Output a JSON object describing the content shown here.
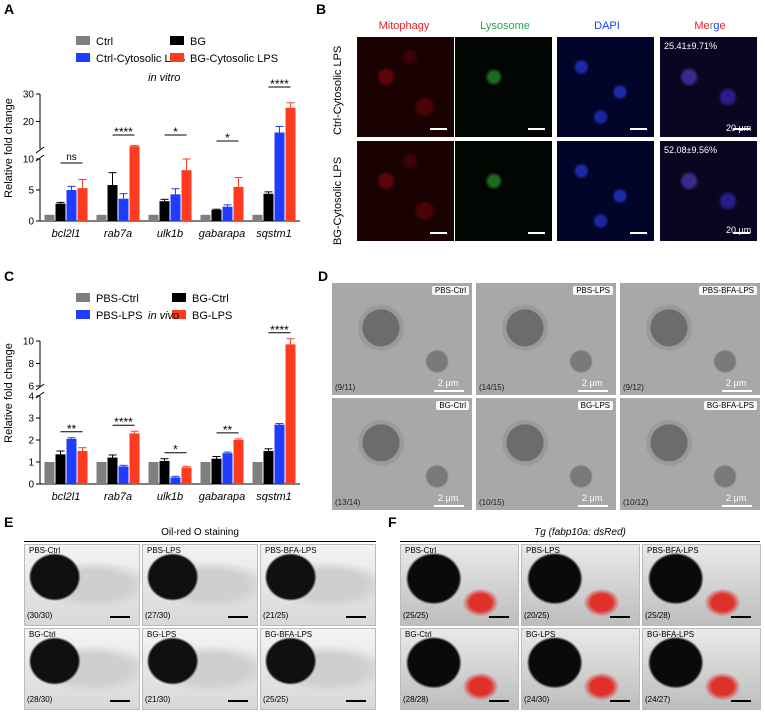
{
  "panels": {
    "A": "A",
    "B": "B",
    "C": "C",
    "D": "D",
    "E": "E",
    "F": "F"
  },
  "colors": {
    "ctrl": "#7f7f7f",
    "bg": "#000000",
    "lps_blue": "#1f3cff",
    "lps_red": "#ff3b1f"
  },
  "chart_data": [
    {
      "type": "bar",
      "panel": "A",
      "annotation": "in vitro",
      "ylabel": "Relative fold change",
      "categories": [
        "bcl2l1",
        "rab7a",
        "ulk1b",
        "gabarapa",
        "sqstm1"
      ],
      "series": [
        {
          "name": "Ctrl",
          "values": [
            1,
            1,
            1,
            1,
            1
          ],
          "errors": [
            0,
            0,
            0,
            0,
            0
          ]
        },
        {
          "name": "BG",
          "values": [
            2.8,
            5.8,
            3.2,
            1.8,
            4.4
          ],
          "errors": [
            0.2,
            2.0,
            0.3,
            0.1,
            0.3
          ]
        },
        {
          "name": "Ctrl-Cytosolic LPS",
          "values": [
            5.0,
            3.6,
            4.3,
            2.3,
            16.0
          ],
          "errors": [
            0.6,
            0.8,
            0.9,
            0.3,
            2.2
          ]
        },
        {
          "name": "BG-Cytosolic LPS",
          "values": [
            5.3,
            11.0,
            8.2,
            5.5,
            25.0
          ],
          "errors": [
            1.4,
            0.3,
            1.8,
            1.5,
            1.8
          ]
        }
      ],
      "y_axis_break": {
        "lower": [
          0,
          10
        ],
        "upper": [
          10,
          30
        ]
      },
      "yticks": [
        0,
        5,
        10,
        20,
        30
      ],
      "significance": [
        {
          "category": "bcl2l1",
          "label": "ns"
        },
        {
          "category": "rab7a",
          "label": "****"
        },
        {
          "category": "ulk1b",
          "label": "*"
        },
        {
          "category": "gabarapa",
          "label": "*"
        },
        {
          "category": "sqstm1",
          "label": "****"
        }
      ],
      "legend_layout": "top, two columns"
    },
    {
      "type": "bar",
      "panel": "C",
      "annotation": "in vivo",
      "ylabel": "Relative fold change",
      "categories": [
        "bcl2l1",
        "rab7a",
        "ulk1b",
        "gabarapa",
        "sqstm1"
      ],
      "series": [
        {
          "name": "PBS-Ctrl",
          "values": [
            1,
            1,
            1,
            1,
            1
          ],
          "errors": [
            0,
            0,
            0,
            0,
            0
          ]
        },
        {
          "name": "BG-Ctrl",
          "values": [
            1.35,
            1.2,
            1.05,
            1.15,
            1.5
          ],
          "errors": [
            0.15,
            0.12,
            0.1,
            0.1,
            0.1
          ]
        },
        {
          "name": "PBS-LPS",
          "values": [
            2.05,
            0.8,
            0.3,
            1.4,
            2.7
          ],
          "errors": [
            0.05,
            0.05,
            0.05,
            0.05,
            0.05
          ]
        },
        {
          "name": "BG-LPS",
          "values": [
            1.5,
            2.3,
            0.75,
            2.0,
            9.7
          ],
          "errors": [
            0.15,
            0.1,
            0.05,
            0.05,
            0.5
          ]
        }
      ],
      "y_axis_break": {
        "lower": [
          0,
          4
        ],
        "upper": [
          6,
          10
        ]
      },
      "yticks": [
        0,
        1,
        2,
        3,
        4,
        6,
        8,
        10
      ],
      "significance": [
        {
          "category": "bcl2l1",
          "label": "**"
        },
        {
          "category": "rab7a",
          "label": "****"
        },
        {
          "category": "ulk1b",
          "label": "*"
        },
        {
          "category": "gabarapa",
          "label": "**"
        },
        {
          "category": "sqstm1",
          "label": "****"
        }
      ],
      "legend_layout": "top, two columns"
    }
  ],
  "panelB": {
    "columns": [
      "Mitophagy",
      "Lysosome",
      "DAPI",
      "Merge"
    ],
    "column_colors": [
      "#e8202a",
      "#22a84a",
      "#1f3cff",
      "#e8202a"
    ],
    "merge_colors": [
      "#e8202a",
      "#22a84a",
      "#1f3cff",
      "#e8202a"
    ],
    "merge_parts": [
      "Me",
      "r",
      "g",
      "e"
    ],
    "rows": [
      "Ctrl-Cytosolic LPS",
      "BG-Cytosolic LPS"
    ],
    "percentages": [
      "25.41±9.71%",
      "52.08±9.56%"
    ],
    "scale": "20 μm"
  },
  "panelD": {
    "cells": [
      {
        "label": "PBS-Ctrl",
        "count": "(9/11)",
        "scale": "2 μm"
      },
      {
        "label": "PBS-LPS",
        "count": "(14/15)",
        "scale": "2 μm"
      },
      {
        "label": "PBS-BFA-LPS",
        "count": "(9/12)",
        "scale": "2 μm"
      },
      {
        "label": "BG-Ctrl",
        "count": "(13/14)",
        "scale": "2 μm"
      },
      {
        "label": "BG-LPS",
        "count": "(10/15)",
        "scale": "2 μm"
      },
      {
        "label": "BG-BFA-LPS",
        "count": "(10/12)",
        "scale": "2 μm"
      }
    ]
  },
  "panelE": {
    "title": "Oil-red O staining",
    "cells": [
      {
        "label": "PBS-Ctrl",
        "count": "(30/30)"
      },
      {
        "label": "PBS-LPS",
        "count": "(27/30)"
      },
      {
        "label": "PBS-BFA-LPS",
        "count": "(21/25)"
      },
      {
        "label": "BG-Ctrl",
        "count": "(28/30)"
      },
      {
        "label": "BG-LPS",
        "count": "(21/30)"
      },
      {
        "label": "BG-BFA-LPS",
        "count": "(25/25)"
      }
    ]
  },
  "panelF": {
    "title": "Tg (fabp10a: dsRed)",
    "cells": [
      {
        "label": "PBS-Ctrl",
        "count": "(25/25)"
      },
      {
        "label": "PBS-LPS",
        "count": "(20/25)"
      },
      {
        "label": "PBS-BFA-LPS",
        "count": "(25/28)"
      },
      {
        "label": "BG-Ctrl",
        "count": "(28/28)"
      },
      {
        "label": "BG-LPS",
        "count": "(24/30)"
      },
      {
        "label": "BG-BFA-LPS",
        "count": "(24/27)"
      }
    ]
  }
}
